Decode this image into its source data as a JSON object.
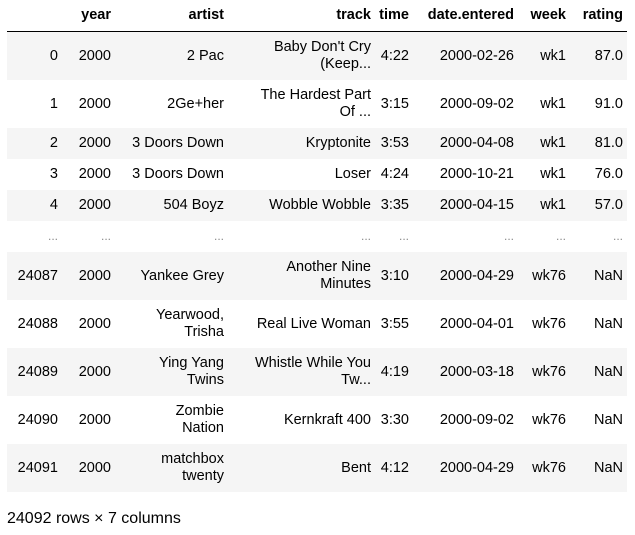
{
  "table": {
    "columns": [
      "",
      "year",
      "artist",
      "track",
      "time",
      "date.entered",
      "week",
      "rating"
    ],
    "rows": [
      {
        "index": "0",
        "year": "2000",
        "artist": [
          "2 Pac"
        ],
        "track": [
          "Baby Don't Cry",
          "(Keep..."
        ],
        "time": "4:22",
        "date": "2000-02-26",
        "week": "wk1",
        "rating": "87.0"
      },
      {
        "index": "1",
        "year": "2000",
        "artist": [
          "2Ge+her"
        ],
        "track": [
          "The Hardest Part",
          "Of ..."
        ],
        "time": "3:15",
        "date": "2000-09-02",
        "week": "wk1",
        "rating": "91.0"
      },
      {
        "index": "2",
        "year": "2000",
        "artist": [
          "3 Doors Down"
        ],
        "track": [
          "Kryptonite"
        ],
        "time": "3:53",
        "date": "2000-04-08",
        "week": "wk1",
        "rating": "81.0"
      },
      {
        "index": "3",
        "year": "2000",
        "artist": [
          "3 Doors Down"
        ],
        "track": [
          "Loser"
        ],
        "time": "4:24",
        "date": "2000-10-21",
        "week": "wk1",
        "rating": "76.0"
      },
      {
        "index": "4",
        "year": "2000",
        "artist": [
          "504 Boyz"
        ],
        "track": [
          "Wobble Wobble"
        ],
        "time": "3:35",
        "date": "2000-04-15",
        "week": "wk1",
        "rating": "57.0"
      },
      {
        "index": "...",
        "year": "...",
        "artist": [
          "..."
        ],
        "track": [
          "..."
        ],
        "time": "...",
        "date": "...",
        "week": "...",
        "rating": "...",
        "ellipsis": true
      },
      {
        "index": "24087",
        "year": "2000",
        "artist": [
          "Yankee Grey"
        ],
        "track": [
          "Another Nine",
          "Minutes"
        ],
        "time": "3:10",
        "date": "2000-04-29",
        "week": "wk76",
        "rating": "NaN"
      },
      {
        "index": "24088",
        "year": "2000",
        "artist": [
          "Yearwood,",
          "Trisha"
        ],
        "track": [
          "Real Live Woman"
        ],
        "time": "3:55",
        "date": "2000-04-01",
        "week": "wk76",
        "rating": "NaN"
      },
      {
        "index": "24089",
        "year": "2000",
        "artist": [
          "Ying Yang",
          "Twins"
        ],
        "track": [
          "Whistle While You",
          "Tw..."
        ],
        "time": "4:19",
        "date": "2000-03-18",
        "week": "wk76",
        "rating": "NaN"
      },
      {
        "index": "24090",
        "year": "2000",
        "artist": [
          "Zombie",
          "Nation"
        ],
        "track": [
          "Kernkraft 400"
        ],
        "time": "3:30",
        "date": "2000-09-02",
        "week": "wk76",
        "rating": "NaN"
      },
      {
        "index": "24091",
        "year": "2000",
        "artist": [
          "matchbox",
          "twenty"
        ],
        "track": [
          "Bent"
        ],
        "time": "4:12",
        "date": "2000-04-29",
        "week": "wk76",
        "rating": "NaN"
      }
    ]
  },
  "shape_note": "24092 rows × 7 columns",
  "colors": {
    "odd_row": "#f5f5f5",
    "even_row": "#ffffff",
    "ellipsis_text": "#8a8a8a"
  }
}
